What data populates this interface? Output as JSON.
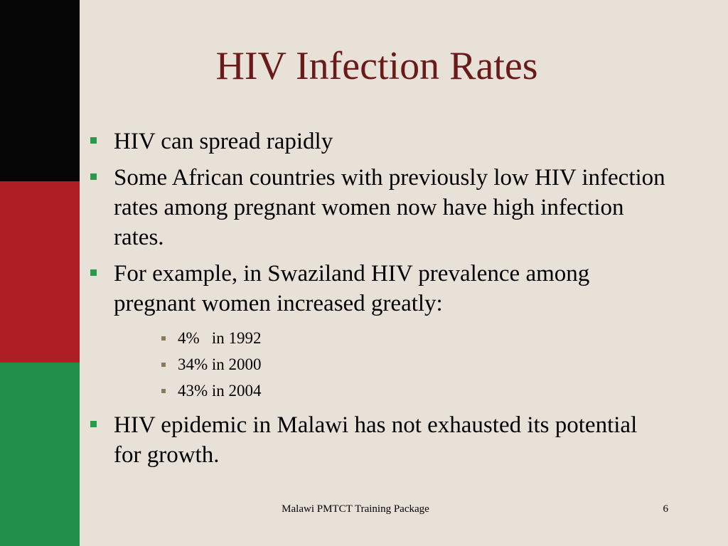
{
  "slide": {
    "title": "HIV Infection Rates",
    "bullets": [
      "HIV can spread rapidly",
      "Some African countries with previously low HIV infection rates among pregnant women now have high infection rates.",
      "For example, in Swaziland HIV prevalence among pregnant women increased greatly:",
      "HIV epidemic in Malawi has not exhausted its potential for growth."
    ],
    "sub_bullets": [
      "4%   in 1992",
      "34% in 2000",
      "43% in 2004"
    ],
    "footer": "Malawi PMTCT Training Package",
    "page_number": "6"
  },
  "colors": {
    "background": "#e8e1d7",
    "title": "#6b1a1a",
    "bullet_marker": "#2a9a4a",
    "sub_bullet_marker": "#8a7a5a",
    "flag_black": "#050505",
    "flag_red": "#b01f25",
    "flag_green": "#21914a"
  }
}
